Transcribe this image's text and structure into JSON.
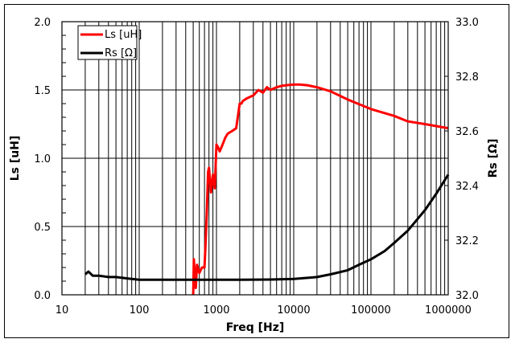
{
  "chart_data": {
    "type": "line",
    "title": "",
    "xlabel": "Freq [Hz]",
    "ylabel": "Ls [uH]",
    "y2label": "Rs [Ω]",
    "xscale": "log",
    "xlim": [
      10,
      1000000
    ],
    "ylim": [
      0.0,
      2.0
    ],
    "y2lim": [
      32.0,
      33.0
    ],
    "x_ticks": [
      "10",
      "100",
      "1000",
      "10000",
      "100000",
      "1000000"
    ],
    "y_ticks": [
      "0.0",
      "0.5",
      "1.0",
      "1.5",
      "2.0"
    ],
    "y2_ticks": [
      "32.0",
      "32.2",
      "32.4",
      "32.6",
      "32.8",
      "33.0"
    ],
    "grid": true,
    "legend_position": "upper left",
    "series": [
      {
        "name": "Ls [uH]",
        "axis": "left",
        "color": "#ff0000",
        "x": [
          500,
          510,
          520,
          540,
          560,
          600,
          650,
          700,
          720,
          750,
          780,
          800,
          850,
          900,
          950,
          1000,
          1050,
          1100,
          1200,
          1300,
          1400,
          1600,
          1800,
          2000,
          2100,
          2200,
          2500,
          3000,
          3500,
          4000,
          4500,
          5000,
          6000,
          7000,
          8000,
          10000,
          12000,
          15000,
          20000,
          30000,
          50000,
          100000,
          200000,
          300000,
          500000,
          1000000
        ],
        "values": [
          0.0,
          0.26,
          0.18,
          0.05,
          0.22,
          0.16,
          0.2,
          0.2,
          0.35,
          0.6,
          0.9,
          0.93,
          0.75,
          0.88,
          0.78,
          1.1,
          1.08,
          1.05,
          1.1,
          1.15,
          1.18,
          1.2,
          1.22,
          1.4,
          1.4,
          1.42,
          1.44,
          1.46,
          1.5,
          1.48,
          1.52,
          1.5,
          1.52,
          1.53,
          1.535,
          1.54,
          1.54,
          1.535,
          1.52,
          1.49,
          1.43,
          1.36,
          1.31,
          1.27,
          1.25,
          1.22
        ]
      },
      {
        "name": "Rs [Ω]",
        "axis": "right",
        "color": "#000000",
        "x": [
          20,
          22,
          25,
          30,
          40,
          50,
          70,
          100,
          200,
          500,
          1000,
          2000,
          5000,
          10000,
          20000,
          30000,
          50000,
          70000,
          100000,
          150000,
          200000,
          300000,
          500000,
          700000,
          1000000
        ],
        "values": [
          32.075,
          32.085,
          32.07,
          32.07,
          32.065,
          32.065,
          32.06,
          32.055,
          32.055,
          32.055,
          32.055,
          32.055,
          32.056,
          32.058,
          32.065,
          32.075,
          32.09,
          32.11,
          32.13,
          32.16,
          32.19,
          32.235,
          32.31,
          32.37,
          32.44
        ]
      }
    ]
  }
}
